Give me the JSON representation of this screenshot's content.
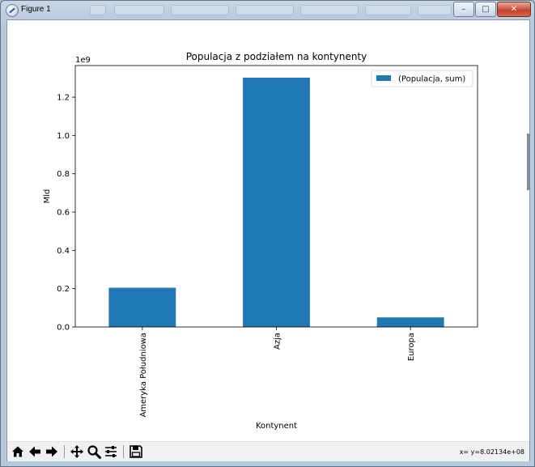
{
  "window": {
    "title": "Figure 1",
    "buttons": {
      "minimize": "–",
      "maximize": "□",
      "close": "✕"
    }
  },
  "toolbar": {
    "icons": [
      "home-icon",
      "back-arrow-icon",
      "forward-arrow-icon",
      "pan-icon",
      "zoom-icon",
      "configure-subplots-icon",
      "save-icon"
    ],
    "coords": "x= y=8.02134e+08"
  },
  "chart_data": {
    "type": "bar",
    "title": "Populacja z podziałem na kontynenty",
    "xlabel": "Kontynent",
    "ylabel": "Mld",
    "offset_text": "1e9",
    "categories": [
      "Ameryka Południowa",
      "Azja",
      "Europa"
    ],
    "series": [
      {
        "name": "(Populacja, sum)",
        "values": [
          0.205,
          1.302,
          0.05
        ],
        "color": "#1f77b4"
      }
    ],
    "ylim": [
      0,
      1.365
    ],
    "yticks": [
      0.0,
      0.2,
      0.4,
      0.6,
      0.8,
      1.0,
      1.2
    ],
    "ytick_labels": [
      "0.0",
      "0.2",
      "0.4",
      "0.6",
      "0.8",
      "1.0",
      "1.2"
    ],
    "grid": false,
    "legend": "top-right"
  }
}
